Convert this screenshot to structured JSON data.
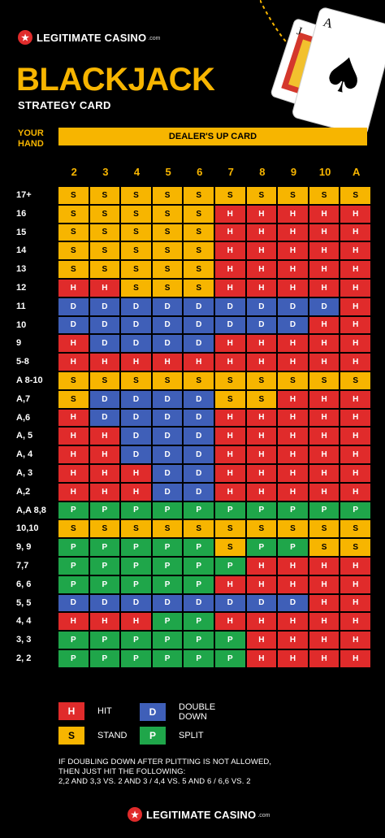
{
  "brand": {
    "name": "LEGITIMATE CASINO",
    "tld": ".com",
    "chip_glyph": "★"
  },
  "title": "BLACKJACK",
  "subtitle": "STRATEGY CARD",
  "your_hand_label": [
    "YOUR",
    "HAND"
  ],
  "dealer_label": "DEALER'S UP CARD",
  "cards": {
    "back_rank": "A",
    "front_rank": "J",
    "suit": "♠"
  },
  "colors": {
    "H": "#e02b2b",
    "S": "#f7b500",
    "D": "#3f5fb8",
    "P": "#1fa64a",
    "accent": "#f7b500"
  },
  "dealer_cards": [
    "2",
    "3",
    "4",
    "5",
    "6",
    "7",
    "8",
    "9",
    "10",
    "A"
  ],
  "rows": [
    {
      "label": "17+",
      "cells": [
        "S",
        "S",
        "S",
        "S",
        "S",
        "S",
        "S",
        "S",
        "S",
        "S"
      ]
    },
    {
      "label": "16",
      "cells": [
        "S",
        "S",
        "S",
        "S",
        "S",
        "H",
        "H",
        "H",
        "H",
        "H"
      ]
    },
    {
      "label": "15",
      "cells": [
        "S",
        "S",
        "S",
        "S",
        "S",
        "H",
        "H",
        "H",
        "H",
        "H"
      ]
    },
    {
      "label": "14",
      "cells": [
        "S",
        "S",
        "S",
        "S",
        "S",
        "H",
        "H",
        "H",
        "H",
        "H"
      ]
    },
    {
      "label": "13",
      "cells": [
        "S",
        "S",
        "S",
        "S",
        "S",
        "H",
        "H",
        "H",
        "H",
        "H"
      ]
    },
    {
      "label": "12",
      "cells": [
        "H",
        "H",
        "S",
        "S",
        "S",
        "H",
        "H",
        "H",
        "H",
        "H"
      ]
    },
    {
      "label": "11",
      "cells": [
        "D",
        "D",
        "D",
        "D",
        "D",
        "D",
        "D",
        "D",
        "D",
        "H"
      ]
    },
    {
      "label": "10",
      "cells": [
        "D",
        "D",
        "D",
        "D",
        "D",
        "D",
        "D",
        "D",
        "H",
        "H"
      ]
    },
    {
      "label": "9",
      "cells": [
        "H",
        "D",
        "D",
        "D",
        "D",
        "H",
        "H",
        "H",
        "H",
        "H"
      ]
    },
    {
      "label": "5-8",
      "cells": [
        "H",
        "H",
        "H",
        "H",
        "H",
        "H",
        "H",
        "H",
        "H",
        "H"
      ]
    },
    {
      "label": "A 8-10",
      "cells": [
        "S",
        "S",
        "S",
        "S",
        "S",
        "S",
        "S",
        "S",
        "S",
        "S"
      ]
    },
    {
      "label": "A,7",
      "cells": [
        "S",
        "D",
        "D",
        "D",
        "D",
        "S",
        "S",
        "H",
        "H",
        "H"
      ]
    },
    {
      "label": "A,6",
      "cells": [
        "H",
        "D",
        "D",
        "D",
        "D",
        "H",
        "H",
        "H",
        "H",
        "H"
      ]
    },
    {
      "label": "A, 5",
      "cells": [
        "H",
        "H",
        "D",
        "D",
        "D",
        "H",
        "H",
        "H",
        "H",
        "H"
      ]
    },
    {
      "label": "A, 4",
      "cells": [
        "H",
        "H",
        "D",
        "D",
        "D",
        "H",
        "H",
        "H",
        "H",
        "H"
      ]
    },
    {
      "label": "A, 3",
      "cells": [
        "H",
        "H",
        "H",
        "D",
        "D",
        "H",
        "H",
        "H",
        "H",
        "H"
      ]
    },
    {
      "label": "A,2",
      "cells": [
        "H",
        "H",
        "H",
        "D",
        "D",
        "H",
        "H",
        "H",
        "H",
        "H"
      ]
    },
    {
      "label": "A,A 8,8",
      "cells": [
        "P",
        "P",
        "P",
        "P",
        "P",
        "P",
        "P",
        "P",
        "P",
        "P"
      ]
    },
    {
      "label": "10,10",
      "cells": [
        "S",
        "S",
        "S",
        "S",
        "S",
        "S",
        "S",
        "S",
        "S",
        "S"
      ]
    },
    {
      "label": "9, 9",
      "cells": [
        "P",
        "P",
        "P",
        "P",
        "P",
        "S",
        "P",
        "P",
        "S",
        "S"
      ]
    },
    {
      "label": "7,7",
      "cells": [
        "P",
        "P",
        "P",
        "P",
        "P",
        "P",
        "H",
        "H",
        "H",
        "H"
      ]
    },
    {
      "label": "6, 6",
      "cells": [
        "P",
        "P",
        "P",
        "P",
        "P",
        "H",
        "H",
        "H",
        "H",
        "H"
      ]
    },
    {
      "label": "5, 5",
      "cells": [
        "D",
        "D",
        "D",
        "D",
        "D",
        "D",
        "D",
        "D",
        "H",
        "H"
      ]
    },
    {
      "label": "4, 4",
      "cells": [
        "H",
        "H",
        "H",
        "P",
        "P",
        "H",
        "H",
        "H",
        "H",
        "H"
      ]
    },
    {
      "label": "3, 3",
      "cells": [
        "P",
        "P",
        "P",
        "P",
        "P",
        "P",
        "H",
        "H",
        "H",
        "H"
      ]
    },
    {
      "label": "2, 2",
      "cells": [
        "P",
        "P",
        "P",
        "P",
        "P",
        "P",
        "H",
        "H",
        "H",
        "H"
      ]
    }
  ],
  "legend": {
    "hit": {
      "code": "H",
      "label": "HIT"
    },
    "stand": {
      "code": "S",
      "label": "STAND"
    },
    "double": {
      "code": "D",
      "label": "DOUBLE\nDOWN"
    },
    "split": {
      "code": "P",
      "label": "SPLIT"
    }
  },
  "note": {
    "line1": "IF DOUBLING DOWN AFTER PLITTING IS NOT ALLOWED,",
    "line2": "THEN JUST HIT THE FOLLOWING:",
    "line3": "2,2 AND 3,3 VS. 2 AND 3  /  4,4 VS. 5 AND 6  /  6,6 VS. 2"
  }
}
